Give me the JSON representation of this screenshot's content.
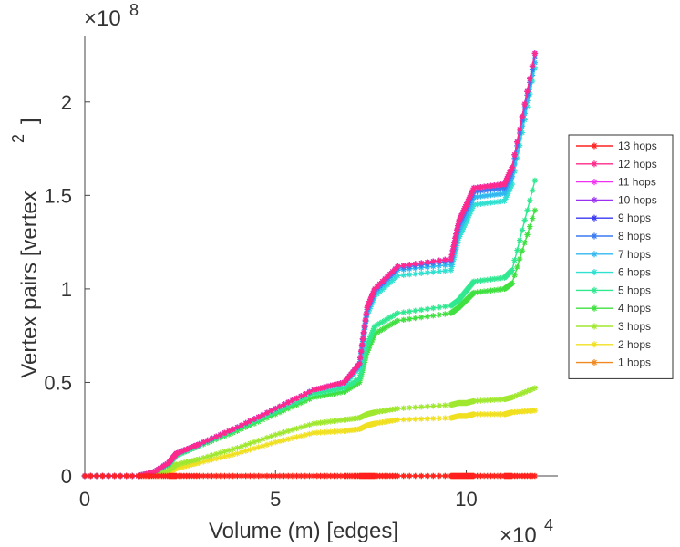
{
  "chart_data": {
    "type": "line",
    "title": "",
    "xlabel": "Volume (m) [edges]",
    "ylabel": "Vertex pairs [vertex",
    "ylabel_superscript": "2",
    "ylabel_close": "]",
    "x_exponent_base": "×10",
    "x_exponent_power": "4",
    "y_exponent_base": "×10",
    "y_exponent_power": "8",
    "xlim": [
      0,
      12.4
    ],
    "ylim": [
      0,
      2.35
    ],
    "xticks": [
      0,
      5,
      10
    ],
    "xtick_labels": [
      "0",
      "5",
      "10"
    ],
    "yticks": [
      0,
      0.5,
      1,
      1.5,
      2
    ],
    "ytick_labels": [
      "0",
      "0.5",
      "1",
      "1.5",
      "2"
    ],
    "x_units_note": "x in units of 10^4 edges, y in units of 10^8 vertex pairs",
    "legend_position": "right",
    "x": [
      0,
      1.4,
      1.8,
      2.2,
      2.4,
      3.0,
      4.0,
      5.0,
      6.0,
      6.8,
      7.2,
      7.4,
      7.6,
      8.2,
      9.6,
      9.8,
      10.0,
      10.2,
      11.0,
      11.2,
      11.8
    ],
    "series": [
      {
        "name": "13 hops",
        "color": "#ff2020",
        "values": [
          0,
          0,
          0,
          0,
          0,
          0,
          0,
          0,
          0,
          0,
          0,
          0,
          0,
          0,
          0,
          0,
          0,
          0,
          0,
          0,
          0
        ]
      },
      {
        "name": "12 hops",
        "color": "#ff2a8a",
        "values": [
          0,
          0,
          0.02,
          0.07,
          0.12,
          0.17,
          0.26,
          0.36,
          0.46,
          0.5,
          0.6,
          0.9,
          1.0,
          1.12,
          1.16,
          1.36,
          1.45,
          1.54,
          1.56,
          1.65,
          2.26
        ]
      },
      {
        "name": "11 hops",
        "color": "#f030f0",
        "values": [
          0,
          0,
          0.02,
          0.07,
          0.12,
          0.17,
          0.26,
          0.36,
          0.46,
          0.5,
          0.6,
          0.9,
          1.0,
          1.12,
          1.16,
          1.36,
          1.45,
          1.54,
          1.56,
          1.65,
          2.26
        ]
      },
      {
        "name": "10 hops",
        "color": "#9a30f0",
        "values": [
          0,
          0,
          0.02,
          0.07,
          0.12,
          0.17,
          0.26,
          0.36,
          0.46,
          0.5,
          0.6,
          0.9,
          1.0,
          1.12,
          1.16,
          1.36,
          1.45,
          1.54,
          1.56,
          1.65,
          2.26
        ]
      },
      {
        "name": "9 hops",
        "color": "#3a3af0",
        "values": [
          0,
          0,
          0.02,
          0.07,
          0.12,
          0.17,
          0.26,
          0.36,
          0.46,
          0.5,
          0.6,
          0.9,
          1.0,
          1.12,
          1.16,
          1.36,
          1.45,
          1.54,
          1.56,
          1.65,
          2.26
        ]
      },
      {
        "name": "8 hops",
        "color": "#3a7af0",
        "values": [
          0,
          0,
          0.02,
          0.07,
          0.12,
          0.17,
          0.26,
          0.36,
          0.46,
          0.5,
          0.6,
          0.89,
          0.99,
          1.11,
          1.15,
          1.34,
          1.43,
          1.52,
          1.54,
          1.63,
          2.24
        ]
      },
      {
        "name": "7 hops",
        "color": "#30b8f0",
        "values": [
          0,
          0,
          0.02,
          0.07,
          0.12,
          0.17,
          0.26,
          0.36,
          0.46,
          0.5,
          0.59,
          0.88,
          0.98,
          1.1,
          1.13,
          1.31,
          1.4,
          1.49,
          1.51,
          1.6,
          2.21
        ]
      },
      {
        "name": "6 hops",
        "color": "#30e0d0",
        "values": [
          0,
          0,
          0.02,
          0.07,
          0.12,
          0.17,
          0.26,
          0.36,
          0.46,
          0.49,
          0.58,
          0.86,
          0.96,
          1.07,
          1.1,
          1.27,
          1.36,
          1.45,
          1.47,
          1.56,
          2.18
        ]
      },
      {
        "name": "5 hops",
        "color": "#30e890",
        "values": [
          0,
          0,
          0.02,
          0.06,
          0.11,
          0.16,
          0.25,
          0.34,
          0.44,
          0.47,
          0.52,
          0.7,
          0.8,
          0.87,
          0.91,
          0.94,
          0.99,
          1.04,
          1.06,
          1.1,
          1.58
        ]
      },
      {
        "name": "4 hops",
        "color": "#40e040",
        "values": [
          0,
          0,
          0.02,
          0.06,
          0.11,
          0.16,
          0.24,
          0.33,
          0.42,
          0.45,
          0.5,
          0.66,
          0.76,
          0.83,
          0.87,
          0.9,
          0.94,
          0.98,
          1.0,
          1.03,
          1.42
        ]
      },
      {
        "name": "3 hops",
        "color": "#a0e830",
        "values": [
          0,
          0,
          0.01,
          0.03,
          0.06,
          0.09,
          0.15,
          0.22,
          0.28,
          0.3,
          0.31,
          0.33,
          0.34,
          0.36,
          0.38,
          0.39,
          0.39,
          0.4,
          0.41,
          0.42,
          0.47
        ]
      },
      {
        "name": "2 hops",
        "color": "#f0e020",
        "values": [
          0,
          0,
          0.01,
          0.02,
          0.04,
          0.07,
          0.12,
          0.18,
          0.23,
          0.24,
          0.25,
          0.27,
          0.28,
          0.3,
          0.31,
          0.32,
          0.32,
          0.33,
          0.33,
          0.34,
          0.35
        ]
      },
      {
        "name": "1 hops",
        "color": "#f08a20",
        "values": [
          0,
          0,
          0,
          0,
          0,
          0,
          0,
          0,
          0,
          0,
          0,
          0,
          0,
          0,
          0,
          0,
          0,
          0,
          0,
          0,
          0
        ]
      }
    ]
  }
}
